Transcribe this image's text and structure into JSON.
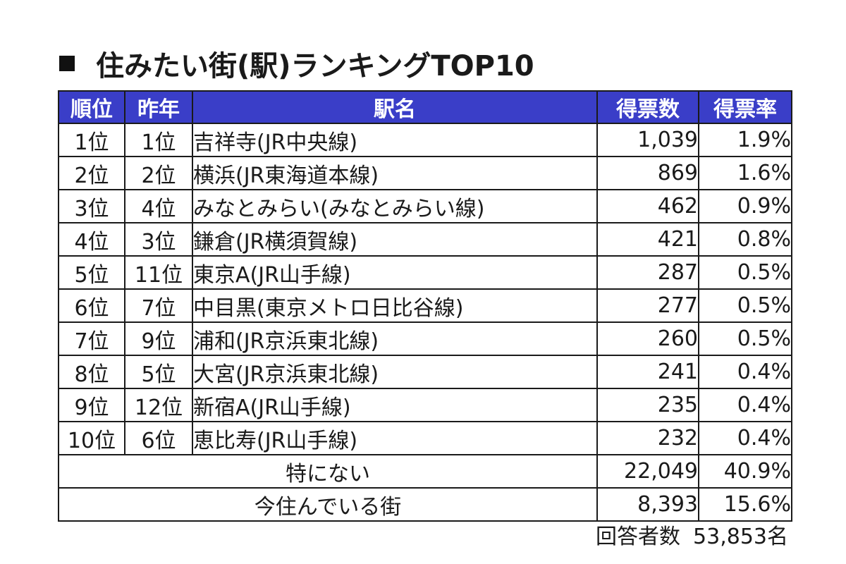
{
  "title": "住みたい街(駅)ランキングTOP10",
  "title_icon": "black-square-icon",
  "header_color": "#3a3ec8",
  "headers": {
    "rank": "順位",
    "prev": "昨年",
    "station": "駅名",
    "votes": "得票数",
    "rate": "得票率"
  },
  "rows": [
    {
      "rank": "1位",
      "prev": "1位",
      "station": "吉祥寺(JR中央線)",
      "votes": "1,039",
      "rate": "1.9%"
    },
    {
      "rank": "2位",
      "prev": "2位",
      "station": "横浜(JR東海道本線)",
      "votes": "869",
      "rate": "1.6%"
    },
    {
      "rank": "3位",
      "prev": "4位",
      "station": "みなとみらい(みなとみらい線)",
      "votes": "462",
      "rate": "0.9%"
    },
    {
      "rank": "4位",
      "prev": "3位",
      "station": "鎌倉(JR横須賀線)",
      "votes": "421",
      "rate": "0.8%"
    },
    {
      "rank": "5位",
      "prev": "11位",
      "station": "東京A(JR山手線)",
      "votes": "287",
      "rate": "0.5%"
    },
    {
      "rank": "6位",
      "prev": "7位",
      "station": "中目黒(東京メトロ日比谷線)",
      "votes": "277",
      "rate": "0.5%"
    },
    {
      "rank": "7位",
      "prev": "9位",
      "station": "浦和(JR京浜東北線)",
      "votes": "260",
      "rate": "0.5%"
    },
    {
      "rank": "8位",
      "prev": "5位",
      "station": "大宮(JR京浜東北線)",
      "votes": "241",
      "rate": "0.4%"
    },
    {
      "rank": "9位",
      "prev": "12位",
      "station": "新宿A(JR山手線)",
      "votes": "235",
      "rate": "0.4%"
    },
    {
      "rank": "10位",
      "prev": "6位",
      "station": "恵比寿(JR山手線)",
      "votes": "232",
      "rate": "0.4%"
    }
  ],
  "summary_rows": [
    {
      "label": "特にない",
      "votes": "22,049",
      "rate": "40.9%"
    },
    {
      "label": "今住んでいる街",
      "votes": "8,393",
      "rate": "15.6%"
    }
  ],
  "respondents": {
    "label": "回答者数",
    "value": "53,853名"
  }
}
